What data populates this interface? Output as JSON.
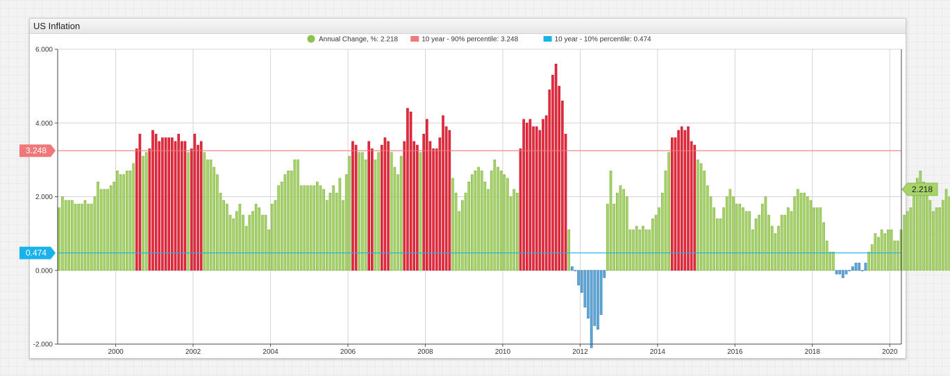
{
  "widget": {
    "title": "US Inflation"
  },
  "chart_data": {
    "type": "bar",
    "title": "US Inflation",
    "ylim": [
      -2,
      6
    ],
    "xlim": [
      1998.5,
      2020.3
    ],
    "yticks": [
      "6.000",
      "4.000",
      "2.000",
      "0.000",
      "-2.000"
    ],
    "xticks": [
      "2000",
      "2002",
      "2004",
      "2006",
      "2008",
      "2010",
      "2012",
      "2014",
      "2016",
      "2018",
      "2020"
    ],
    "grid": true,
    "legend_position": "top",
    "series": [
      {
        "name": "Annual Change, %",
        "last_value_label": "2.218",
        "color": "#8bc34a"
      }
    ],
    "thresholds": [
      {
        "name": "10 year - 90% percentile",
        "value": 3.248,
        "label": "3.248",
        "color": "#f07878"
      },
      {
        "name": "10 year - 10% percentile",
        "value": 0.474,
        "label": "0.474",
        "color": "#1ab2ec"
      }
    ],
    "legend": [
      {
        "text": "Annual Change, %: 2.218",
        "color": "#8bc34a",
        "marker": "circle"
      },
      {
        "text": "10 year - 90% percentile: 3.248",
        "color": "#f07878",
        "marker": "rect"
      },
      {
        "text": "10 year - 10% percentile: 0.474",
        "color": "#1ab2ec",
        "marker": "rect"
      }
    ],
    "bar_colors": {
      "normal": "#a6d468",
      "normal_edge": "#7fae3f",
      "high": "#e8283c",
      "high_edge": "#b81c2c",
      "low": "#5fa8d8",
      "low_edge": "#2e78b0"
    },
    "x_start": "1998-07",
    "values": [
      1.7,
      2.0,
      1.9,
      1.9,
      1.9,
      1.8,
      1.8,
      1.8,
      1.9,
      1.8,
      1.8,
      2.0,
      2.4,
      2.2,
      2.2,
      2.2,
      2.3,
      2.4,
      2.7,
      2.6,
      2.6,
      2.7,
      2.7,
      2.9,
      3.3,
      3.7,
      3.1,
      3.2,
      3.3,
      3.8,
      3.7,
      3.5,
      3.6,
      3.6,
      3.6,
      3.6,
      3.5,
      3.7,
      3.5,
      3.5,
      3.2,
      3.3,
      3.7,
      3.4,
      3.5,
      3.2,
      3.0,
      3.0,
      2.8,
      2.6,
      2.1,
      1.9,
      1.8,
      1.5,
      1.4,
      1.6,
      1.8,
      1.5,
      1.2,
      1.5,
      1.6,
      1.8,
      1.7,
      1.5,
      1.5,
      1.1,
      1.8,
      1.9,
      2.3,
      2.4,
      2.6,
      2.7,
      2.7,
      3.0,
      3.0,
      2.3,
      2.3,
      2.3,
      2.3,
      2.3,
      2.4,
      2.3,
      2.2,
      1.9,
      2.1,
      2.3,
      2.1,
      2.5,
      1.9,
      2.6,
      3.1,
      3.5,
      3.4,
      3.2,
      3.2,
      3.0,
      3.5,
      3.3,
      3.0,
      3.2,
      3.4,
      3.6,
      3.5,
      3.2,
      2.8,
      2.6,
      3.1,
      3.5,
      4.4,
      4.3,
      3.5,
      3.4,
      3.2,
      3.7,
      4.1,
      3.5,
      3.3,
      3.3,
      3.6,
      4.2,
      3.9,
      3.8,
      2.5,
      2.1,
      1.6,
      1.9,
      2.1,
      2.4,
      2.6,
      2.7,
      2.8,
      2.7,
      2.4,
      2.2,
      2.7,
      3.0,
      2.8,
      2.7,
      2.6,
      2.5,
      2.0,
      2.2,
      2.1,
      3.3,
      4.1,
      4.0,
      4.1,
      3.9,
      3.9,
      3.8,
      4.1,
      4.2,
      4.9,
      5.3,
      5.6,
      5.0,
      4.6,
      3.7,
      1.1,
      0.1,
      0.0,
      -0.4,
      -0.6,
      -1.0,
      -1.3,
      -2.1,
      -1.5,
      -1.6,
      -1.2,
      -0.2,
      1.8,
      2.7,
      1.8,
      2.1,
      2.3,
      2.2,
      2.0,
      1.1,
      1.1,
      1.2,
      1.1,
      1.2,
      1.1,
      1.1,
      1.4,
      1.5,
      1.7,
      2.1,
      2.7,
      3.2,
      3.6,
      3.6,
      3.8,
      3.9,
      3.8,
      3.9,
      3.5,
      3.4,
      3.0,
      2.9,
      2.7,
      2.3,
      2.0,
      1.7,
      1.4,
      1.4,
      1.7,
      2.0,
      2.2,
      2.0,
      1.8,
      1.8,
      1.7,
      1.6,
      1.6,
      1.1,
      1.4,
      1.5,
      1.8,
      2.0,
      1.5,
      1.2,
      1.0,
      1.2,
      1.5,
      1.5,
      1.7,
      1.6,
      2.0,
      2.2,
      2.1,
      2.1,
      2.0,
      1.9,
      1.7,
      1.7,
      1.7,
      1.3,
      0.8,
      0.5,
      0.5,
      -0.1,
      -0.1,
      -0.2,
      -0.1,
      0.0,
      0.1,
      0.2,
      0.2,
      0.0,
      0.2,
      0.5,
      0.7,
      1.0,
      0.9,
      1.1,
      1.0,
      1.1,
      1.1,
      0.8,
      0.8,
      1.1,
      1.5,
      1.6,
      1.7,
      2.1,
      2.5,
      2.7,
      2.4,
      2.2,
      1.9,
      1.6,
      1.7,
      1.7,
      1.9,
      2.2,
      2.0,
      2.1,
      2.2,
      2.1,
      2.1,
      2.2
    ]
  }
}
